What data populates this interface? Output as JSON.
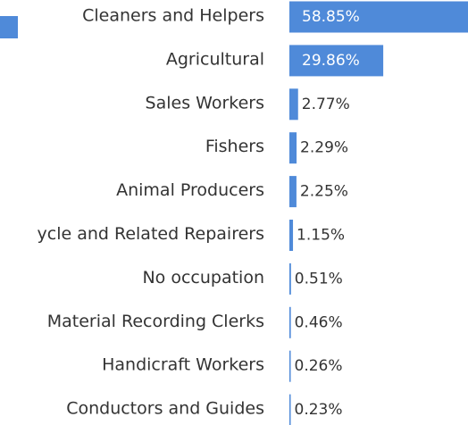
{
  "chart_data": {
    "type": "bar",
    "orientation": "horizontal",
    "color": "#4f8ad9",
    "categories": [
      "Cleaners and Helpers",
      "Agricultural",
      "Sales Workers",
      "Fishers",
      "Animal Producers",
      "ycle and Related Repairers",
      "No occupation",
      "Material Recording Clerks",
      "Handicraft  Workers",
      "Conductors and Guides"
    ],
    "values": [
      58.85,
      29.86,
      2.77,
      2.29,
      2.25,
      1.15,
      0.51,
      0.46,
      0.26,
      0.23
    ],
    "value_labels": [
      "58.85%",
      "29.86%",
      "2.77%",
      "2.29%",
      "2.25%",
      "1.15%",
      "0.51%",
      "0.46%",
      "0.26%",
      "0.23%"
    ]
  }
}
